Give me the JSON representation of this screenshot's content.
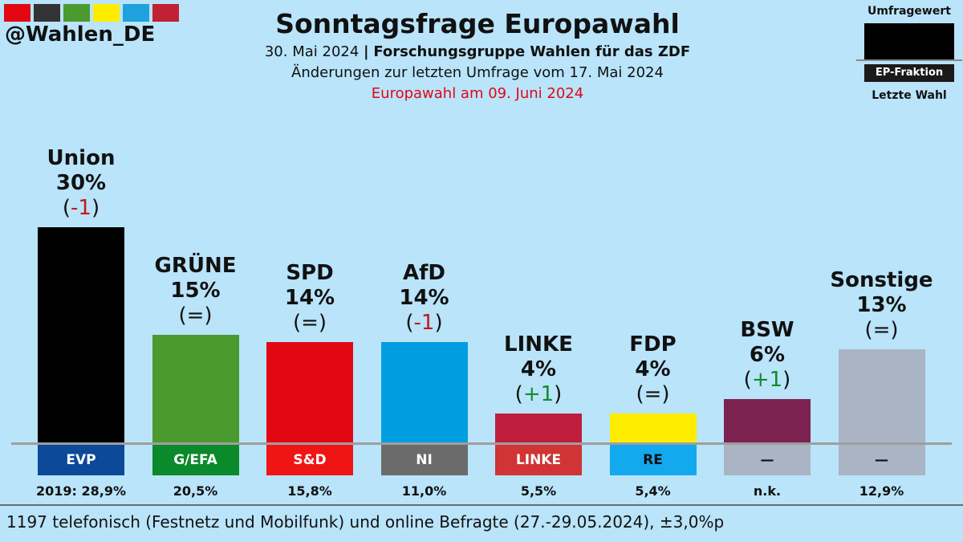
{
  "color_strip": [
    "#e30613",
    "#333333",
    "#4a9a30",
    "#ffed00",
    "#1ea1dc",
    "#c22034"
  ],
  "handle": "@Wahlen_DE",
  "title": "Sonntagsfrage Europawahl",
  "subtitle_date": "30. Mai 2024",
  "subtitle_sep": "|",
  "subtitle_source": "Forschungsgruppe Wahlen für das ZDF",
  "changes_note": "Änderungen zur letzten Umfrage vom 17. Mai 2024",
  "election_note": "Europawahl am 09. Juni 2024",
  "legend": {
    "value": "Umfragewert",
    "group": "EP-Fraktion",
    "last": "Letzte Wahl"
  },
  "footer": "1197 telefonisch (Festnetz und Mobilfunk) und online Befragte (27.-29.05.2024), ±3,0%p",
  "chart_data": {
    "type": "bar",
    "title": "Sonntagsfrage Europawahl",
    "unit": "%",
    "categories": [
      "Union",
      "GRÜNE",
      "SPD",
      "AfD",
      "LINKE",
      "FDP",
      "BSW",
      "Sonstige"
    ],
    "values": [
      30,
      15,
      14,
      14,
      4,
      4,
      6,
      13
    ],
    "value_labels": [
      "30%",
      "15%",
      "14%",
      "14%",
      "4%",
      "4%",
      "6%",
      "13%"
    ],
    "changes": [
      "(-1)",
      "(=)",
      "(=)",
      "(-1)",
      "(+1)",
      "(=)",
      "(+1)",
      "(=)"
    ],
    "change_dir": [
      "neg",
      "none",
      "none",
      "neg",
      "pos",
      "none",
      "pos",
      "none"
    ],
    "bar_colors": [
      "#000000",
      "#4a9a30",
      "#e30613",
      "#009ee0",
      "#be1e3c",
      "#ffed00",
      "#7b2250",
      "#aab4c4"
    ],
    "ep_groups": [
      "EVP",
      "G/EFA",
      "S&D",
      "NI",
      "LINKE",
      "RE",
      "—",
      "—"
    ],
    "ep_colors": [
      "#0c4a99",
      "#0a8a2a",
      "#f01515",
      "#6b6b6b",
      "#d03434",
      "#13a9ef",
      "#aab4c4",
      "#aab4c4"
    ],
    "last_election": [
      "2019: 28,9%",
      "20,5%",
      "15,8%",
      "11,0%",
      "5,5%",
      "5,4%",
      "n.k.",
      "12,9%"
    ],
    "ylim": [
      0,
      30
    ]
  }
}
